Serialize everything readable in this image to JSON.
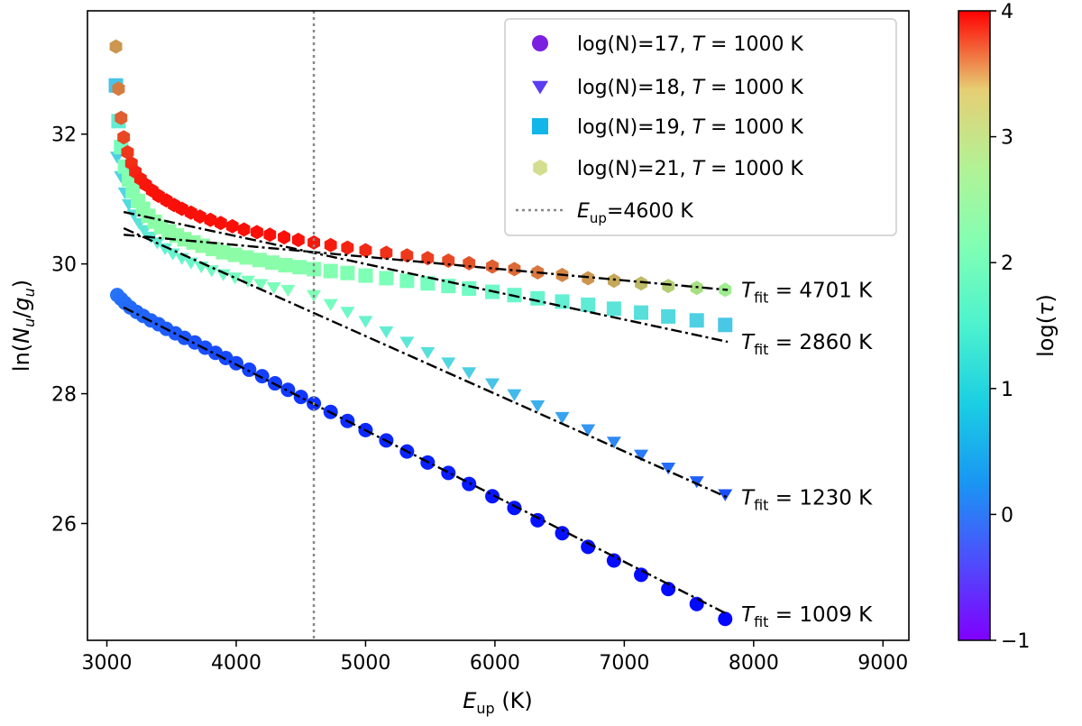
{
  "chart_data": {
    "type": "scatter",
    "title": "",
    "xlabel": "E_up (K)",
    "ylabel": "ln(N_u/g_u)",
    "xlim": [
      2850,
      9200
    ],
    "ylim": [
      24.2,
      33.9
    ],
    "x_ticks": [
      3000,
      4000,
      5000,
      6000,
      7000,
      8000,
      9000
    ],
    "y_ticks": [
      26,
      28,
      30,
      32
    ],
    "vline": {
      "x": 4600,
      "label": "E_up=4600 K"
    },
    "colorbar": {
      "label": "log(τ)",
      "min": -1,
      "max": 4,
      "ticks": [
        -1,
        0,
        1,
        2,
        3,
        4
      ],
      "colormap": "rainbow"
    },
    "legend_position": "top-right",
    "series": [
      {
        "name": "log(N)=17, T=1000 K",
        "marker": "circle",
        "legend_color": "#7b1fe0",
        "x": [
          3080,
          3110,
          3140,
          3180,
          3230,
          3280,
          3340,
          3400,
          3460,
          3530,
          3600,
          3680,
          3760,
          3840,
          3920,
          4000,
          4100,
          4200,
          4300,
          4400,
          4500,
          4600,
          4730,
          4860,
          5000,
          5160,
          5320,
          5480,
          5640,
          5800,
          5980,
          6150,
          6330,
          6520,
          6720,
          6920,
          7130,
          7340,
          7560,
          7780
        ],
        "y": [
          29.52,
          29.46,
          29.4,
          29.33,
          29.26,
          29.2,
          29.13,
          29.07,
          29.0,
          28.93,
          28.86,
          28.79,
          28.71,
          28.63,
          28.55,
          28.47,
          28.37,
          28.27,
          28.16,
          28.06,
          27.95,
          27.85,
          27.72,
          27.58,
          27.44,
          27.28,
          27.11,
          26.94,
          26.78,
          26.61,
          26.42,
          26.24,
          26.05,
          25.85,
          25.64,
          25.43,
          25.21,
          24.99,
          24.76,
          24.53
        ],
        "log_tau": [
          -0.25,
          -0.28,
          -0.3,
          -0.32,
          -0.34,
          -0.36,
          -0.38,
          -0.4,
          -0.42,
          -0.44,
          -0.46,
          -0.48,
          -0.5,
          -0.52,
          -0.54,
          -0.56,
          -0.58,
          -0.6,
          -0.62,
          -0.64,
          -0.66,
          -0.68,
          -0.7,
          -0.72,
          -0.74,
          -0.76,
          -0.78,
          -0.8,
          -0.82,
          -0.84,
          -0.86,
          -0.88,
          -0.89,
          -0.9,
          -0.91,
          -0.92,
          -0.93,
          -0.94,
          -0.95,
          -0.97
        ],
        "fit": {
          "x": [
            3130,
            7800
          ],
          "y": [
            29.33,
            24.6
          ]
        },
        "fit_label_prefix": "T",
        "fit_label_sub": "fit",
        "fit_label_value": " = 1009 K"
      },
      {
        "name": "log(N)=18, T=1000 K",
        "marker": "triangle-down",
        "legend_color": "#5a3ef0",
        "x": [
          3080,
          3110,
          3140,
          3170,
          3210,
          3250,
          3290,
          3340,
          3390,
          3450,
          3510,
          3580,
          3650,
          3730,
          3810,
          3900,
          3990,
          4090,
          4190,
          4290,
          4400,
          4600,
          4730,
          4860,
          5000,
          5160,
          5320,
          5480,
          5640,
          5800,
          5980,
          6150,
          6330,
          6520,
          6720,
          6920,
          7130,
          7340,
          7560,
          7780
        ],
        "y": [
          31.65,
          31.35,
          31.1,
          30.92,
          30.76,
          30.63,
          30.52,
          30.42,
          30.33,
          30.24,
          30.16,
          30.09,
          30.02,
          29.96,
          29.9,
          29.84,
          29.79,
          29.74,
          29.69,
          29.64,
          29.6,
          29.52,
          29.38,
          29.26,
          29.12,
          28.96,
          28.8,
          28.64,
          28.48,
          28.33,
          28.16,
          27.99,
          27.82,
          27.64,
          27.45,
          27.26,
          27.06,
          26.86,
          26.65,
          26.45
        ],
        "log_tau": [
          0.5,
          0.55,
          0.6,
          0.65,
          0.7,
          0.75,
          0.8,
          0.85,
          0.9,
          0.95,
          1.0,
          1.05,
          1.1,
          1.15,
          1.2,
          1.25,
          1.3,
          1.35,
          1.38,
          1.4,
          1.42,
          1.45,
          1.3,
          1.15,
          1.0,
          0.9,
          0.8,
          0.7,
          0.6,
          0.5,
          0.4,
          0.3,
          0.2,
          0.1,
          0.0,
          -0.1,
          -0.2,
          -0.3,
          -0.4,
          -0.5
        ],
        "fit": {
          "x": [
            3130,
            7800
          ],
          "y": [
            30.55,
            26.4
          ]
        },
        "fit_label_prefix": "T",
        "fit_label_sub": "fit",
        "fit_label_value": " = 1230 K"
      },
      {
        "name": "log(N)=19, T=1000 K",
        "marker": "square",
        "legend_color": "#12b6e8",
        "x": [
          3070,
          3090,
          3110,
          3140,
          3170,
          3200,
          3240,
          3280,
          3320,
          3370,
          3420,
          3480,
          3540,
          3600,
          3670,
          3740,
          3820,
          3900,
          3990,
          4080,
          4180,
          4280,
          4380,
          4490,
          4600,
          4730,
          4860,
          5000,
          5160,
          5320,
          5480,
          5640,
          5800,
          5980,
          6150,
          6330,
          6520,
          6720,
          6920,
          7130,
          7340,
          7560,
          7780
        ],
        "y": [
          32.75,
          32.2,
          31.8,
          31.5,
          31.3,
          31.12,
          30.97,
          30.85,
          30.74,
          30.65,
          30.57,
          30.5,
          30.44,
          30.38,
          30.33,
          30.28,
          30.23,
          30.18,
          30.14,
          30.1,
          30.06,
          30.02,
          29.98,
          29.95,
          29.92,
          29.89,
          29.86,
          29.82,
          29.78,
          29.74,
          29.7,
          29.66,
          29.62,
          29.57,
          29.52,
          29.47,
          29.42,
          29.37,
          29.31,
          29.25,
          29.19,
          29.13,
          29.06
        ],
        "log_tau": [
          0.4,
          0.9,
          1.3,
          1.45,
          1.55,
          1.6,
          1.65,
          1.68,
          1.7,
          1.72,
          1.74,
          1.75,
          1.76,
          1.77,
          1.78,
          1.78,
          1.77,
          1.76,
          1.74,
          1.72,
          1.7,
          1.68,
          1.66,
          1.63,
          1.6,
          1.56,
          1.52,
          1.48,
          1.43,
          1.38,
          1.33,
          1.27,
          1.21,
          1.15,
          1.08,
          1.01,
          0.94,
          0.86,
          0.78,
          0.7,
          0.61,
          0.52,
          0.42
        ],
        "fit": {
          "x": [
            3130,
            7800
          ],
          "y": [
            30.8,
            28.8
          ]
        },
        "fit_label_prefix": "T",
        "fit_label_sub": "fit",
        "fit_label_value": " = 2860 K"
      },
      {
        "name": "log(N)=21, T=1000 K",
        "marker": "hexagon",
        "legend_color": "#d3de8e",
        "x": [
          3070,
          3090,
          3110,
          3130,
          3160,
          3190,
          3220,
          3260,
          3300,
          3350,
          3400,
          3460,
          3520,
          3580,
          3650,
          3720,
          3800,
          3880,
          3970,
          4060,
          4160,
          4260,
          4370,
          4480,
          4600,
          4730,
          4860,
          5000,
          5160,
          5320,
          5480,
          5640,
          5800,
          5980,
          6150,
          6330,
          6520,
          6720,
          6920,
          7130,
          7340,
          7560,
          7780
        ],
        "y": [
          33.35,
          32.7,
          32.25,
          31.95,
          31.72,
          31.55,
          31.42,
          31.31,
          31.22,
          31.13,
          31.05,
          30.98,
          30.91,
          30.85,
          30.79,
          30.73,
          30.68,
          30.63,
          30.58,
          30.53,
          30.49,
          30.45,
          30.41,
          30.37,
          30.33,
          30.29,
          30.25,
          30.21,
          30.17,
          30.13,
          30.09,
          30.05,
          30.01,
          29.96,
          29.92,
          29.87,
          29.83,
          29.78,
          29.74,
          29.7,
          29.66,
          29.63,
          29.6
        ],
        "log_tau": [
          3.0,
          3.2,
          3.4,
          3.55,
          3.65,
          3.72,
          3.78,
          3.82,
          3.86,
          3.88,
          3.9,
          3.9,
          3.9,
          3.9,
          3.9,
          3.9,
          3.9,
          3.9,
          3.9,
          3.9,
          3.9,
          3.9,
          3.9,
          3.88,
          3.85,
          3.82,
          3.78,
          3.74,
          3.7,
          3.65,
          3.6,
          3.54,
          3.48,
          3.4,
          3.32,
          3.23,
          3.13,
          3.0,
          2.85,
          2.7,
          2.5,
          2.3,
          2.1
        ],
        "fit": {
          "x": [
            3130,
            7800
          ],
          "y": [
            30.45,
            29.6
          ]
        },
        "fit_label_prefix": "T",
        "fit_label_sub": "fit",
        "fit_label_value": " = 4701 K"
      }
    ],
    "legend": [
      {
        "name_prefix": "log(N)=17, ",
        "name_T": "T",
        "name_suffix": " = 1000 K"
      },
      {
        "name_prefix": "log(N)=18, ",
        "name_T": "T",
        "name_suffix": " = 1000 K"
      },
      {
        "name_prefix": "log(N)=19, ",
        "name_T": "T",
        "name_suffix": " = 1000 K"
      },
      {
        "name_prefix": "log(N)=21, ",
        "name_T": "T",
        "name_suffix": " = 1000 K"
      },
      {
        "name_prefix": "E",
        "name_T": "up",
        "name_suffix": "=4600 K"
      }
    ]
  }
}
